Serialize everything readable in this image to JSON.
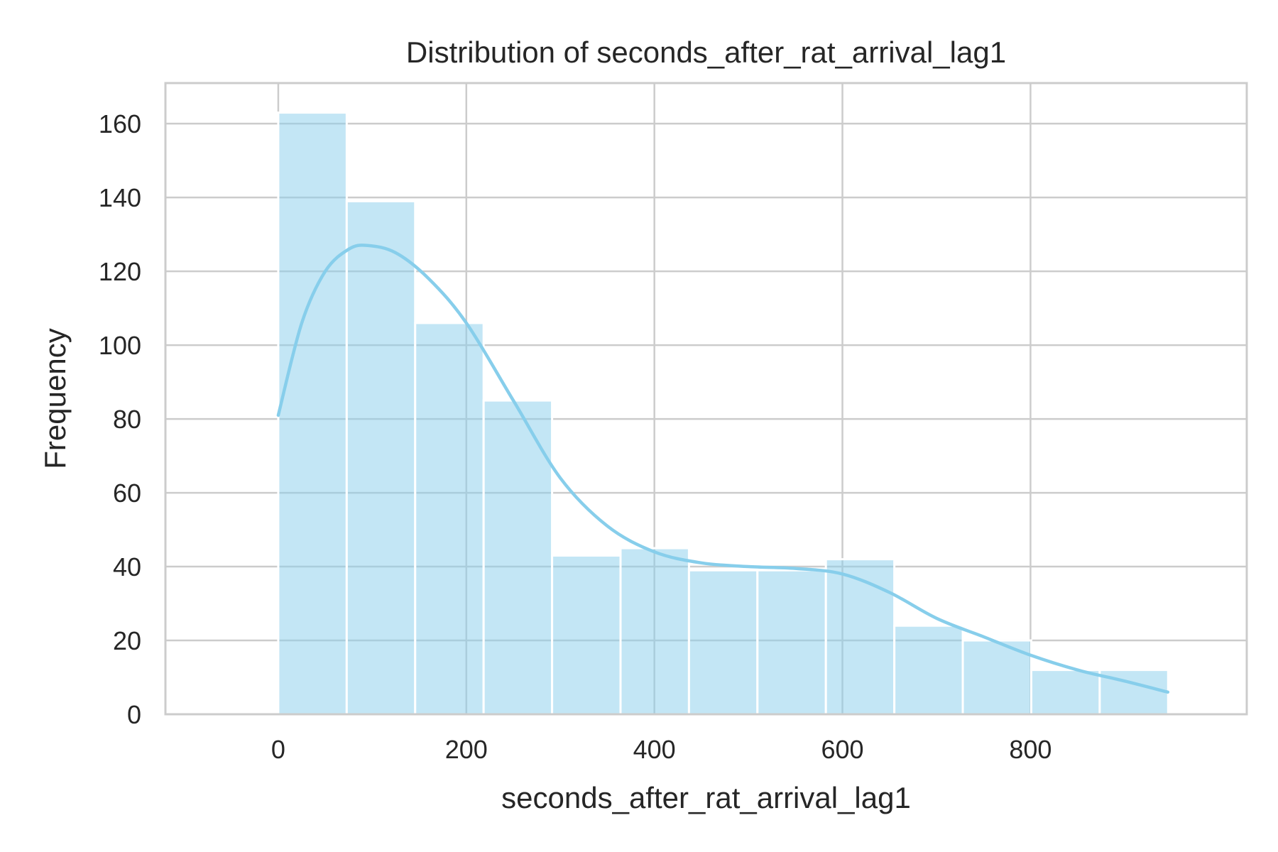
{
  "chart_data": {
    "type": "bar",
    "subtype": "histogram-with-kde",
    "title": "Distribution of seconds_after_rat_arrival_lag1",
    "xlabel": "seconds_after_rat_arrival_lag1",
    "ylabel": "Frequency",
    "xlim": [
      -120,
      1030
    ],
    "ylim": [
      0,
      171
    ],
    "xticks": [
      0,
      200,
      400,
      600,
      800
    ],
    "yticks": [
      0,
      20,
      40,
      60,
      80,
      100,
      120,
      140,
      160
    ],
    "grid": true,
    "legend": "none",
    "bar_color": "#87ceeb",
    "line_color": "#87ceeb",
    "bins": {
      "edges": [
        0,
        72.8,
        145.6,
        218.4,
        291.2,
        364,
        436.8,
        509.6,
        582.4,
        655.2,
        728,
        800.8,
        873.6,
        946.4
      ],
      "counts": [
        163,
        139,
        106,
        85,
        43,
        45,
        39,
        39,
        42,
        24,
        20,
        12,
        12
      ]
    },
    "kde": {
      "x": [
        0,
        25,
        50,
        75,
        95,
        125,
        160,
        200,
        250,
        300,
        350,
        400,
        450,
        500,
        550,
        600,
        650,
        700,
        750,
        800,
        850,
        900,
        946
      ],
      "y": [
        81,
        106,
        120,
        126,
        127,
        125,
        118,
        106,
        85,
        64,
        51,
        44,
        41,
        40,
        39.5,
        38,
        33,
        26,
        21,
        16,
        12,
        9,
        6
      ]
    }
  }
}
